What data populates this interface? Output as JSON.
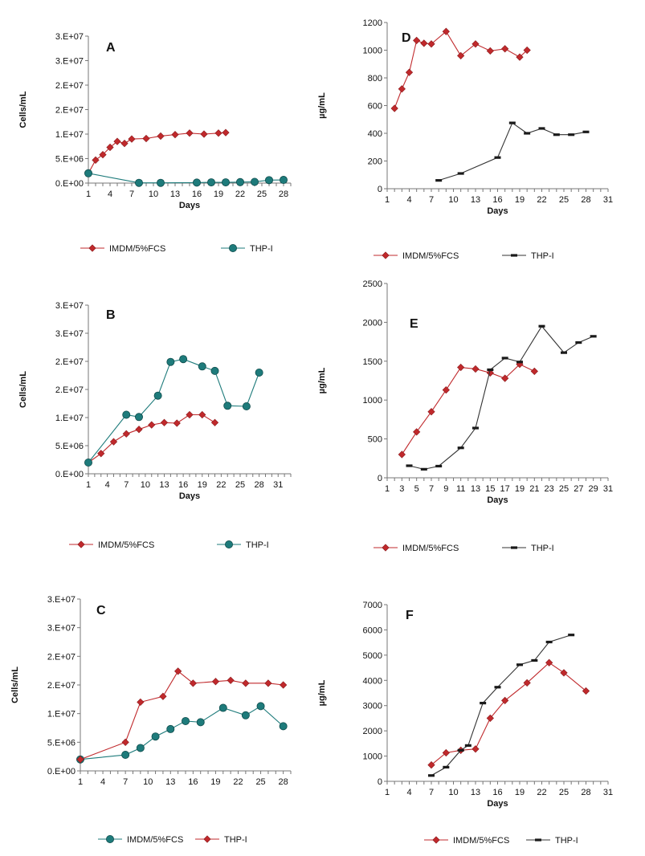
{
  "chart_data": [
    {
      "panel": "A",
      "type": "line",
      "panel_label": "A",
      "ylabel": "Cells/mL",
      "xlabel": "Days",
      "ylim": [
        0,
        30000000
      ],
      "yticks": [
        "0.E+00",
        "5.E+06",
        "1.E+07",
        "2.E+07",
        "2.E+07",
        "3.E+07",
        "3.E+07"
      ],
      "xlim": [
        1,
        29
      ],
      "xticks": [
        "1",
        "4",
        "7",
        "10",
        "13",
        "16",
        "19",
        "22",
        "25",
        "28"
      ],
      "legend_position": "bottom",
      "series": [
        {
          "name": "IMDM/5%FCS",
          "color": "#c0292c",
          "marker": "diamond",
          "x": [
            1,
            2,
            3,
            4,
            5,
            6,
            7,
            9,
            11,
            13,
            15,
            17,
            19,
            20
          ],
          "y": [
            2000000,
            4700000,
            5800000,
            7300000,
            8500000,
            8100000,
            9000000,
            9100000,
            9600000,
            9900000,
            10200000,
            10000000,
            10200000,
            10300000
          ]
        },
        {
          "name": "THP-I",
          "color": "#1e7b7b",
          "marker": "circle",
          "x": [
            1,
            8,
            11,
            16,
            18,
            20,
            22,
            24,
            26,
            28
          ],
          "y": [
            2000000,
            50000,
            50000,
            100000,
            150000,
            150000,
            200000,
            250000,
            600000,
            650000
          ]
        }
      ]
    },
    {
      "panel": "B",
      "type": "line",
      "panel_label": "B",
      "ylabel": "Cells/mL",
      "xlabel": "Days",
      "ylim": [
        0,
        30000000
      ],
      "yticks": [
        "0.E+00",
        "5.E+06",
        "1.E+07",
        "2.E+07",
        "2.E+07",
        "3.E+07",
        "3.E+07"
      ],
      "xlim": [
        1,
        33
      ],
      "xticks": [
        "1",
        "4",
        "7",
        "10",
        "13",
        "16",
        "19",
        "22",
        "25",
        "28",
        "31"
      ],
      "legend_position": "bottom",
      "series": [
        {
          "name": "IMDM/5%FCS",
          "color": "#c0292c",
          "marker": "diamond",
          "x": [
            1,
            3,
            5,
            7,
            9,
            11,
            13,
            15,
            17,
            19,
            21
          ],
          "y": [
            2000000,
            3600000,
            5700000,
            7100000,
            7900000,
            8700000,
            9100000,
            9000000,
            10500000,
            10500000,
            9100000
          ]
        },
        {
          "name": "THP-I",
          "color": "#1e7b7b",
          "marker": "circle",
          "x": [
            1,
            7,
            9,
            12,
            14,
            16,
            19,
            21,
            23,
            26,
            28
          ],
          "y": [
            2000000,
            10500000,
            10100000,
            13900000,
            19900000,
            20400000,
            19100000,
            18300000,
            12100000,
            12000000,
            18000000
          ]
        }
      ]
    },
    {
      "panel": "C",
      "type": "line",
      "panel_label": "C",
      "ylabel": "Cells/mL",
      "xlabel": "",
      "ylim": [
        0,
        30000000
      ],
      "yticks": [
        "0.E+00",
        "5.E+06",
        "1.E+07",
        "2.E+07",
        "2.E+07",
        "3.E+07",
        "3.E+07"
      ],
      "xlim": [
        1,
        29
      ],
      "xticks": [
        "1",
        "4",
        "7",
        "10",
        "13",
        "16",
        "19",
        "22",
        "25",
        "28"
      ],
      "legend_position": "bottom",
      "series": [
        {
          "name": "IMDM/5%FCS",
          "color": "#1e7b7b",
          "marker": "circle",
          "x": [
            1,
            7,
            9,
            11,
            13,
            15,
            17,
            20,
            23,
            25,
            28
          ],
          "y": [
            2000000,
            2800000,
            4000000,
            6000000,
            7300000,
            8700000,
            8500000,
            11000000,
            9700000,
            11300000,
            7800000
          ]
        },
        {
          "name": "THP-I",
          "color": "#c0292c",
          "marker": "diamond",
          "x": [
            1,
            7,
            9,
            12,
            14,
            16,
            19,
            21,
            23,
            26,
            28
          ],
          "y": [
            2000000,
            5000000,
            12000000,
            13000000,
            17400000,
            15300000,
            15600000,
            15800000,
            15300000,
            15300000,
            15000000
          ]
        }
      ]
    },
    {
      "panel": "D",
      "type": "line",
      "panel_label": "D",
      "ylabel": "µg/mL",
      "xlabel": "Days",
      "ylim": [
        0,
        1200
      ],
      "yticks": [
        "0",
        "200",
        "400",
        "600",
        "800",
        "1000",
        "1200"
      ],
      "xlim": [
        1,
        31
      ],
      "xticks": [
        "1",
        "4",
        "7",
        "10",
        "13",
        "16",
        "19",
        "22",
        "25",
        "28",
        "31"
      ],
      "legend_position": "bottom",
      "series": [
        {
          "name": "IMDM/5%FCS",
          "color": "#c0292c",
          "marker": "diamond",
          "x": [
            2,
            3,
            4,
            5,
            6,
            7,
            9,
            11,
            13,
            15,
            17,
            19,
            20
          ],
          "y": [
            580,
            720,
            840,
            1070,
            1050,
            1045,
            1135,
            960,
            1045,
            995,
            1010,
            950,
            1000
          ]
        },
        {
          "name": "THP-I",
          "color": "#1a1a1a",
          "marker": "dash",
          "x": [
            8,
            11,
            16,
            18,
            20,
            22,
            24,
            26,
            28
          ],
          "y": [
            60,
            110,
            225,
            475,
            400,
            435,
            390,
            390,
            410
          ]
        }
      ]
    },
    {
      "panel": "E",
      "type": "line",
      "panel_label": "E",
      "ylabel": "µg/mL",
      "xlabel": "Days",
      "ylim": [
        0,
        2500
      ],
      "yticks": [
        "0",
        "500",
        "1000",
        "1500",
        "2000",
        "2500"
      ],
      "xlim": [
        1,
        31
      ],
      "xticks": [
        "1",
        "3",
        "5",
        "7",
        "9",
        "11",
        "13",
        "15",
        "17",
        "19",
        "21",
        "23",
        "25",
        "27",
        "29",
        "31"
      ],
      "legend_position": "bottom",
      "series": [
        {
          "name": "IMDM/5%FCS",
          "color": "#c0292c",
          "marker": "diamond",
          "x": [
            3,
            5,
            7,
            9,
            11,
            13,
            15,
            17,
            19,
            21
          ],
          "y": [
            300,
            590,
            850,
            1130,
            1420,
            1400,
            1350,
            1280,
            1460,
            1370
          ]
        },
        {
          "name": "THP-I",
          "color": "#1a1a1a",
          "marker": "dash",
          "x": [
            4,
            6,
            8,
            11,
            13,
            15,
            17,
            19,
            22,
            25,
            27,
            29
          ],
          "y": [
            155,
            110,
            150,
            385,
            640,
            1390,
            1540,
            1490,
            1950,
            1610,
            1740,
            1820
          ]
        }
      ]
    },
    {
      "panel": "F",
      "type": "line",
      "panel_label": "F",
      "ylabel": "µg/mL",
      "xlabel": "Days",
      "ylim": [
        0,
        7000
      ],
      "yticks": [
        "0",
        "1000",
        "2000",
        "3000",
        "4000",
        "5000",
        "6000",
        "7000"
      ],
      "xlim": [
        1,
        31
      ],
      "xticks": [
        "1",
        "4",
        "7",
        "10",
        "13",
        "16",
        "19",
        "22",
        "25",
        "28",
        "31"
      ],
      "legend_position": "bottom",
      "series": [
        {
          "name": "IMDM/5%FCS",
          "color": "#c0292c",
          "marker": "diamond",
          "x": [
            7,
            9,
            11,
            13,
            15,
            17,
            20,
            23,
            25,
            28
          ],
          "y": [
            650,
            1130,
            1230,
            1280,
            2500,
            3200,
            3900,
            4700,
            4300,
            3580
          ]
        },
        {
          "name": "THP-I",
          "color": "#1a1a1a",
          "marker": "dash",
          "x": [
            7,
            9,
            11,
            12,
            14,
            16,
            19,
            21,
            23,
            26
          ],
          "y": [
            230,
            560,
            1230,
            1420,
            3100,
            3730,
            4620,
            4790,
            5520,
            5800
          ]
        }
      ]
    }
  ]
}
